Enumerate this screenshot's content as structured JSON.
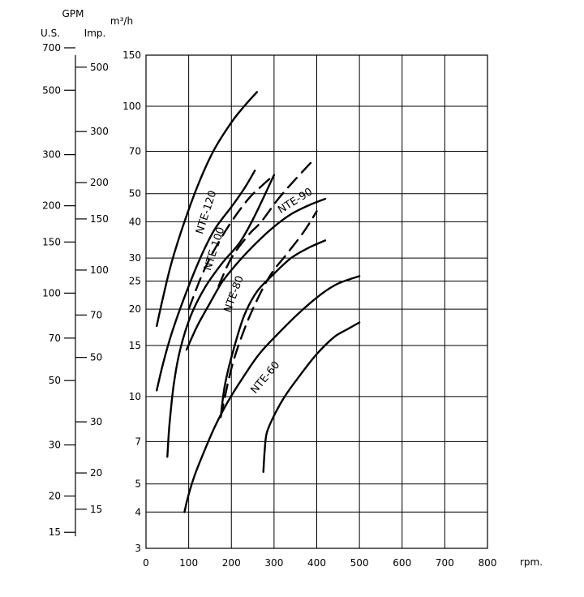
{
  "chart_data": {
    "type": "line",
    "x_axis": {
      "unit": "rpm.",
      "min": 0,
      "max": 800,
      "ticks": [
        "0",
        "100",
        "200",
        "300",
        "400",
        "500",
        "600",
        "700",
        "800"
      ]
    },
    "y_axis": {
      "unit": "m³/h",
      "scale": "log",
      "min": 3,
      "max": 150,
      "ticks": [
        "3",
        "4",
        "5",
        "7",
        "10",
        "15",
        "20",
        "25",
        "30",
        "40",
        "50",
        "70",
        "100",
        "150"
      ]
    },
    "secondary_scales": {
      "header": "GPM",
      "us": {
        "label": "U.S.",
        "ticks": [
          "15",
          "20",
          "30",
          "50",
          "70",
          "100",
          "150",
          "200",
          "300",
          "500",
          "700"
        ]
      },
      "imp": {
        "label": "Imp.",
        "ticks": [
          "15",
          "20",
          "30",
          "50",
          "70",
          "100",
          "150",
          "200",
          "300",
          "500"
        ]
      }
    },
    "series": [
      {
        "name": "NTE-120",
        "style": "solid",
        "points": [
          [
            25,
            17.5
          ],
          [
            40,
            22
          ],
          [
            60,
            29
          ],
          [
            90,
            40
          ],
          [
            125,
            55
          ],
          [
            160,
            71
          ],
          [
            200,
            88
          ],
          [
            230,
            100
          ],
          [
            260,
            112
          ]
        ]
      },
      {
        "name": "",
        "style": "solid",
        "points": [
          [
            25,
            10.5
          ],
          [
            40,
            13
          ],
          [
            60,
            16.5
          ],
          [
            90,
            22
          ],
          [
            125,
            29.5
          ],
          [
            160,
            37.5
          ],
          [
            200,
            45
          ],
          [
            230,
            52
          ],
          [
            255,
            60
          ]
        ]
      },
      {
        "name": "",
        "style": "dashed",
        "points": [
          [
            100,
            20
          ],
          [
            130,
            26
          ],
          [
            160,
            32
          ],
          [
            200,
            40
          ],
          [
            240,
            48
          ],
          [
            270,
            53
          ],
          [
            300,
            58
          ]
        ]
      },
      {
        "name": "NTE-100",
        "style": "solid",
        "points": [
          [
            50,
            6.2
          ],
          [
            55,
            8
          ],
          [
            65,
            11
          ],
          [
            80,
            14.5
          ],
          [
            105,
            19
          ],
          [
            140,
            24
          ],
          [
            180,
            29
          ],
          [
            220,
            34
          ],
          [
            255,
            42
          ],
          [
            300,
            58
          ]
        ]
      },
      {
        "name": "",
        "style": "dashed",
        "points": [
          [
            170,
            24
          ],
          [
            200,
            30
          ],
          [
            240,
            36
          ],
          [
            270,
            40
          ],
          [
            310,
            48
          ],
          [
            350,
            56
          ],
          [
            395,
            66
          ]
        ]
      },
      {
        "name": "NTE-90",
        "style": "solid",
        "points": [
          [
            95,
            14.5
          ],
          [
            120,
            17.5
          ],
          [
            150,
            21
          ],
          [
            180,
            25
          ],
          [
            220,
            29.5
          ],
          [
            260,
            34
          ],
          [
            300,
            38.5
          ],
          [
            340,
            42.5
          ],
          [
            380,
            45.5
          ],
          [
            420,
            48
          ]
        ]
      },
      {
        "name": "",
        "style": "dashed",
        "points": [
          [
            175,
            8.5
          ],
          [
            185,
            10
          ],
          [
            200,
            12.5
          ],
          [
            220,
            15.5
          ],
          [
            250,
            20
          ],
          [
            290,
            26
          ],
          [
            330,
            31
          ],
          [
            370,
            37
          ],
          [
            400,
            43.5
          ]
        ]
      },
      {
        "name": "NTE-80",
        "style": "solid",
        "points": [
          [
            175,
            8.5
          ],
          [
            185,
            11
          ],
          [
            205,
            14.5
          ],
          [
            230,
            19
          ],
          [
            260,
            23
          ],
          [
            300,
            26.5
          ],
          [
            340,
            30
          ],
          [
            380,
            32.5
          ],
          [
            420,
            34.5
          ]
        ]
      },
      {
        "name": "",
        "style": "solid",
        "points": [
          [
            90,
            4
          ],
          [
            100,
            4.6
          ],
          [
            115,
            5.4
          ],
          [
            135,
            6.4
          ],
          [
            160,
            7.8
          ],
          [
            190,
            9.5
          ],
          [
            225,
            11.5
          ],
          [
            265,
            14
          ],
          [
            310,
            16.5
          ],
          [
            360,
            19.5
          ],
          [
            410,
            22.5
          ],
          [
            450,
            24.5
          ],
          [
            500,
            26
          ]
        ]
      },
      {
        "name": "NTE-60",
        "style": "solid",
        "points": [
          [
            275,
            5.5
          ],
          [
            278,
            6.5
          ],
          [
            283,
            7.5
          ],
          [
            300,
            8.6
          ],
          [
            325,
            10
          ],
          [
            360,
            11.8
          ],
          [
            400,
            14
          ],
          [
            440,
            16
          ],
          [
            470,
            17
          ],
          [
            500,
            18
          ]
        ]
      }
    ],
    "curve_labels": [
      "NTE-120",
      "NTE-100",
      "NTE-90",
      "NTE-80",
      "NTE-60"
    ]
  }
}
